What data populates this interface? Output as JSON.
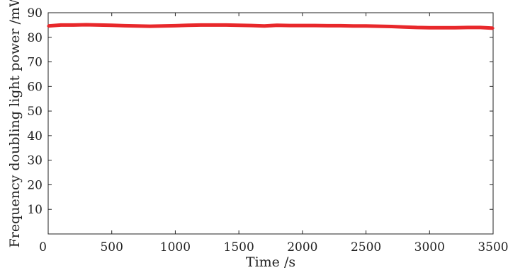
{
  "chart_data": {
    "type": "line",
    "title": "",
    "xlabel": "Time /s",
    "ylabel": "Frequency doubling light power /mW",
    "xlim": [
      0,
      3500
    ],
    "ylim": [
      0,
      90
    ],
    "xticks": [
      0,
      500,
      1000,
      1500,
      2000,
      2500,
      3000,
      3500
    ],
    "yticks": [
      10,
      20,
      30,
      40,
      50,
      60,
      70,
      80,
      90
    ],
    "grid": false,
    "legend": "none",
    "series": [
      {
        "color": "#e8282b",
        "x": [
          0,
          100,
          200,
          300,
          400,
          500,
          600,
          700,
          800,
          900,
          1000,
          1100,
          1200,
          1300,
          1400,
          1500,
          1600,
          1700,
          1800,
          1900,
          2000,
          2100,
          2200,
          2300,
          2400,
          2500,
          2600,
          2700,
          2800,
          2900,
          3000,
          3100,
          3200,
          3300,
          3400,
          3500
        ],
        "y": [
          84.6,
          85.0,
          85.0,
          85.1,
          85.0,
          84.9,
          84.7,
          84.6,
          84.5,
          84.6,
          84.7,
          84.9,
          85.0,
          85.0,
          85.0,
          84.9,
          84.8,
          84.6,
          84.9,
          84.8,
          84.8,
          84.8,
          84.7,
          84.7,
          84.6,
          84.6,
          84.5,
          84.4,
          84.2,
          84.0,
          83.9,
          83.9,
          83.9,
          84.0,
          84.0,
          83.7
        ]
      }
    ]
  }
}
